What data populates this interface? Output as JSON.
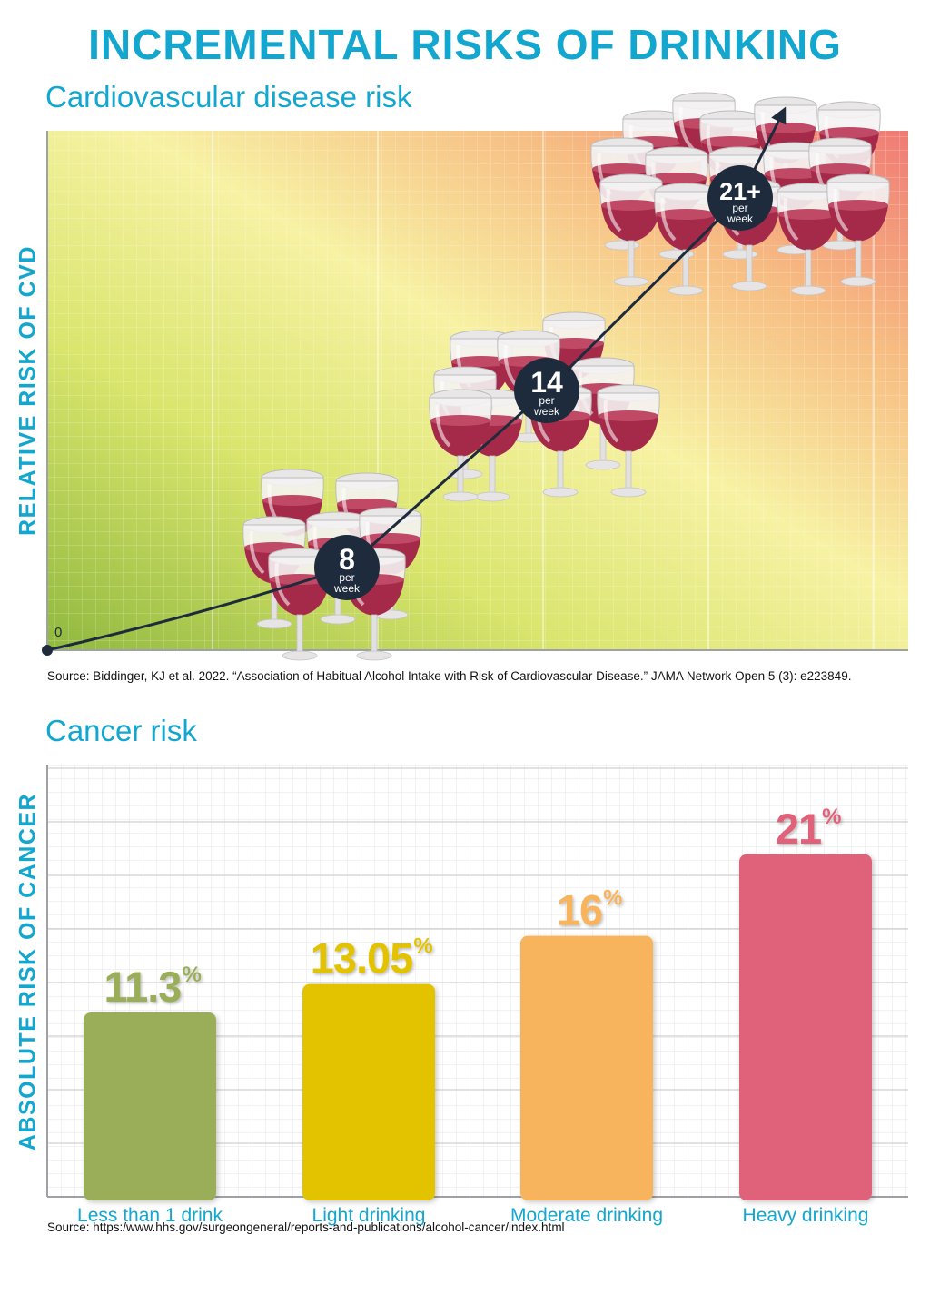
{
  "title": "INCREMENTAL RISKS OF DRINKING",
  "colors": {
    "accent": "#13a6cf",
    "wine": "#a52a4a",
    "marker": "#1e2b3c",
    "bar_colors": [
      "#9aae5a",
      "#e3c300",
      "#f7b45c",
      "#e0627a"
    ]
  },
  "cvd": {
    "subtitle": "Cardiovascular disease risk",
    "ylabel": "RELATIVE RISK OF CVD",
    "zero_label": "0",
    "source": "Source: Biddinger, KJ et al. 2022. “Association of Habitual Alcohol Intake with Risk of Cardiovascular Disease.” JAMA Network Open 5 (3): e223849.",
    "markers": [
      {
        "value": "8",
        "unit_line1": "per",
        "unit_line2": "week"
      },
      {
        "value": "14",
        "unit_line1": "per",
        "unit_line2": "week"
      },
      {
        "value": "21+",
        "unit_line1": "per",
        "unit_line2": "week"
      }
    ]
  },
  "cancer": {
    "subtitle": "Cancer risk",
    "ylabel": "ABSOLUTE RISK OF CANCER",
    "source": "Source: https:/www.hhs.gov/surgeongeneral/reports-and-publications/alcohol-cancer/index.html"
  },
  "chart_data": [
    {
      "type": "line",
      "title": "Cardiovascular disease risk",
      "xlabel": "",
      "ylabel": "RELATIVE RISK OF CVD",
      "x": [
        0,
        8,
        14,
        21
      ],
      "point_labels": [
        "0",
        "8 per week",
        "14 per week",
        "21+ per week"
      ],
      "note": "Relative risk rises with drinks per week; no numeric y-axis values shown"
    },
    {
      "type": "bar",
      "title": "Cancer risk",
      "ylabel": "ABSOLUTE RISK OF CANCER",
      "categories": [
        "Less than 1 drink",
        "Light drinking",
        "Moderate drinking",
        "Heavy drinking"
      ],
      "values": [
        11.3,
        13.05,
        16,
        21
      ],
      "labels": [
        "11.3",
        "13.05",
        "16",
        "21"
      ],
      "unit": "%"
    }
  ]
}
